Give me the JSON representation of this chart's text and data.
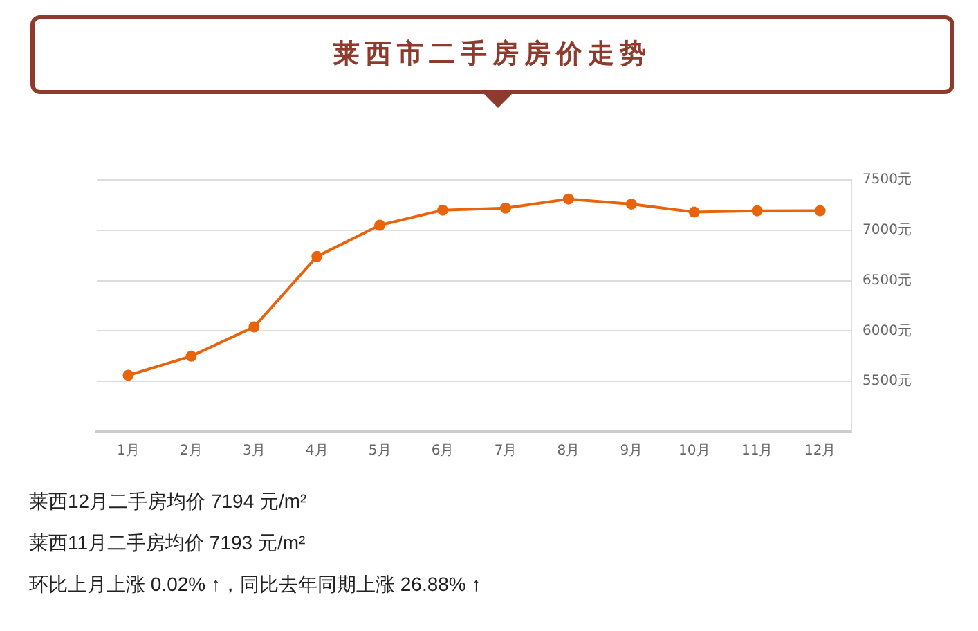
{
  "chart_data": {
    "type": "line",
    "title": "莱西市二手房房价走势",
    "categories": [
      "1月",
      "2月",
      "3月",
      "4月",
      "5月",
      "6月",
      "7月",
      "8月",
      "9月",
      "10月",
      "11月",
      "12月"
    ],
    "series": [
      {
        "color": "#e8640c",
        "values": [
          5560,
          5750,
          6040,
          6740,
          7050,
          7200,
          7220,
          7310,
          7260,
          7180,
          7193,
          7194
        ]
      }
    ],
    "ylim": [
      5000,
      7500
    ],
    "yticks": [
      {
        "value": 5000,
        "label": null
      },
      {
        "value": 5500,
        "label": "5500元"
      },
      {
        "value": 6000,
        "label": "6000元"
      },
      {
        "value": 6500,
        "label": "6500元"
      },
      {
        "value": 7000,
        "label": "7000元"
      },
      {
        "value": 7500,
        "label": "7500元"
      }
    ],
    "grid": "y",
    "legend": false,
    "marker": "circle",
    "line_style": "solid",
    "annotations": [
      "莱西12月二手房均价 7194 元/m²",
      "莱西11月二手房均价 7193 元/m²",
      "环比上月上涨 0.02% ↑，同比去年同期上涨 26.88% ↑"
    ]
  }
}
